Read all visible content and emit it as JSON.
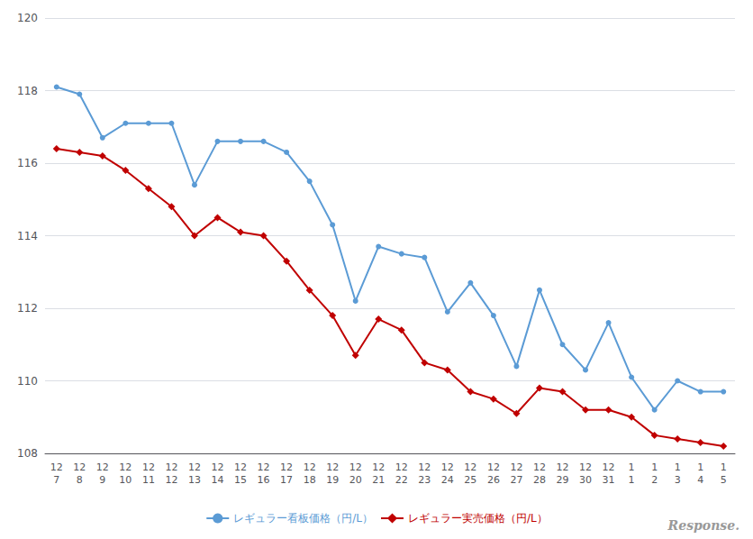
{
  "chart_data": {
    "type": "line",
    "categories": [
      "12\n7",
      "12\n8",
      "12\n9",
      "12\n10",
      "12\n11",
      "12\n12",
      "12\n13",
      "12\n14",
      "12\n15",
      "12\n16",
      "12\n17",
      "12\n18",
      "12\n19",
      "12\n20",
      "12\n21",
      "12\n22",
      "12\n23",
      "12\n24",
      "12\n25",
      "12\n26",
      "12\n27",
      "12\n28",
      "12\n29",
      "12\n30",
      "12\n31",
      "1\n1",
      "1\n2",
      "1\n3",
      "1\n4",
      "1\n5"
    ],
    "series": [
      {
        "name": "レギュラー看板価格（円/L）",
        "color": "#5b9bd5",
        "marker": "circle",
        "values": [
          118.1,
          117.9,
          116.7,
          117.1,
          117.1,
          117.1,
          115.4,
          116.6,
          116.6,
          116.6,
          116.3,
          115.5,
          114.3,
          112.2,
          113.7,
          113.5,
          113.4,
          111.9,
          112.7,
          111.8,
          110.4,
          112.5,
          111.0,
          110.3,
          111.6,
          110.1,
          109.2,
          110.0,
          109.7,
          109.7
        ]
      },
      {
        "name": "レギュラー実売価格（円/L）",
        "color": "#c00000",
        "marker": "diamond",
        "values": [
          116.4,
          116.3,
          116.2,
          115.8,
          115.3,
          114.8,
          114.0,
          114.5,
          114.1,
          114.0,
          113.3,
          112.5,
          111.8,
          110.7,
          111.7,
          111.4,
          110.5,
          110.3,
          109.7,
          109.5,
          109.1,
          109.8,
          109.7,
          109.2,
          109.2,
          109.0,
          108.5,
          108.4,
          108.3,
          108.2
        ]
      }
    ],
    "ylim": [
      108,
      120
    ],
    "yticks": [
      108,
      110,
      112,
      114,
      116,
      118,
      120
    ],
    "grid": true,
    "legend": "bottom",
    "annotations": [
      "Response."
    ]
  }
}
